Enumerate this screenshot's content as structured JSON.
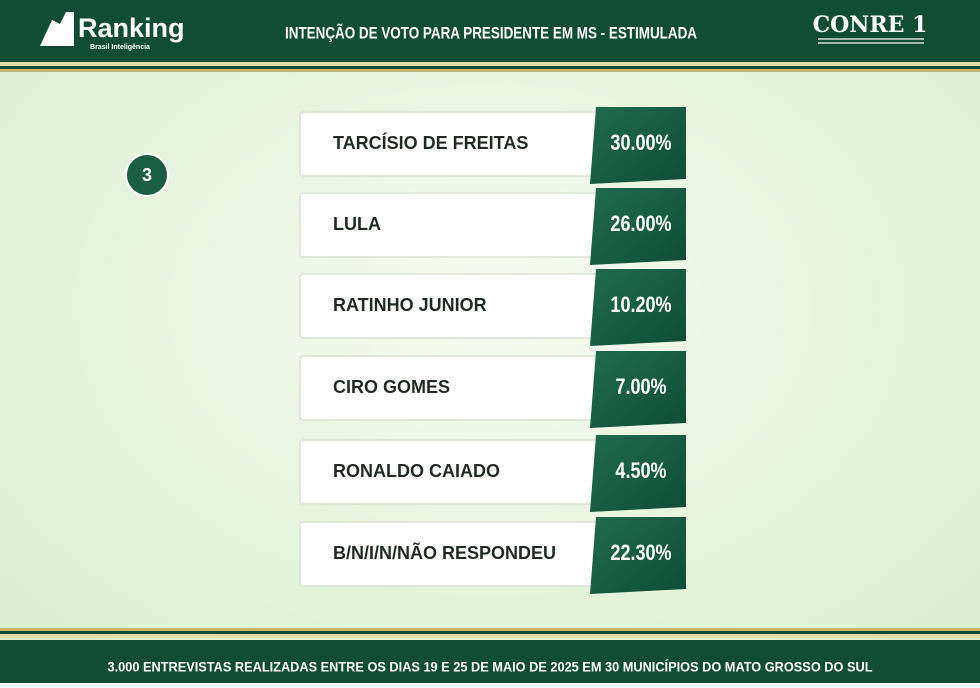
{
  "header": {
    "logo": "Ranking",
    "logo_subtitle": "Brasil Inteligência",
    "title": "INTENÇÃO DE VOTO PARA PRESIDENTE EM MS - ESTIMULADA",
    "partner": "CONRE 1"
  },
  "badge": "3",
  "rows": [
    {
      "name": "TARCÍSIO DE FREITAS",
      "value": "30.00%"
    },
    {
      "name": "LULA",
      "value": "26.00%"
    },
    {
      "name": "RATINHO JUNIOR",
      "value": "10.20%"
    },
    {
      "name": "CIRO GOMES",
      "value": "7.00%"
    },
    {
      "name": "RONALDO CAIADO",
      "value": "4.50%"
    },
    {
      "name": "B/N/I/N/NÃO RESPONDEU",
      "value": "22.30%"
    }
  ],
  "footer": "3.000 ENTREVISTAS REALIZADAS ENTRE OS DIAS 19 E 25 DE MAIO DE 2025 EM 30 MUNICÍPIOS DO MATO GROSSO DO SUL"
}
